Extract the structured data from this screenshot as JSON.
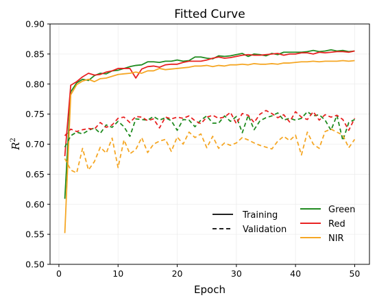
{
  "chart_data": {
    "type": "line",
    "title": "Fitted Curve",
    "xlabel": "Epoch",
    "ylabel": "R",
    "ylabel_superscript": "2",
    "xlim": [
      -1.5,
      52.5
    ],
    "ylim": [
      0.5,
      0.9
    ],
    "xticks": [
      0,
      10,
      20,
      30,
      40,
      50
    ],
    "yticks": [
      0.5,
      0.55,
      0.6,
      0.65,
      0.7,
      0.75,
      0.8,
      0.85,
      0.9
    ],
    "grid": true,
    "legend_styles": [
      {
        "label": "Training",
        "dash": "solid"
      },
      {
        "label": "Validation",
        "dash": "dashed"
      }
    ],
    "legend_styles_placement": "lower-center",
    "legend_colors_placement": "lower-right",
    "colors": {
      "Green": "#1e8a1e",
      "Red": "#e82020",
      "NIR": "#f5a623"
    },
    "series": [
      {
        "name": "Green",
        "style": "Training",
        "values": [
          0.609,
          0.787,
          0.802,
          0.808,
          0.806,
          0.814,
          0.818,
          0.817,
          0.822,
          0.823,
          0.826,
          0.829,
          0.831,
          0.832,
          0.837,
          0.837,
          0.836,
          0.838,
          0.838,
          0.84,
          0.838,
          0.839,
          0.845,
          0.845,
          0.843,
          0.842,
          0.847,
          0.846,
          0.847,
          0.849,
          0.851,
          0.846,
          0.85,
          0.849,
          0.847,
          0.851,
          0.849,
          0.853,
          0.853,
          0.853,
          0.853,
          0.854,
          0.856,
          0.854,
          0.855,
          0.857,
          0.855,
          0.856,
          0.854,
          0.855
        ]
      },
      {
        "name": "Red",
        "style": "Training",
        "values": [
          0.68,
          0.798,
          0.804,
          0.812,
          0.818,
          0.815,
          0.816,
          0.82,
          0.822,
          0.826,
          0.826,
          0.826,
          0.81,
          0.825,
          0.829,
          0.83,
          0.828,
          0.832,
          0.833,
          0.833,
          0.836,
          0.838,
          0.838,
          0.838,
          0.84,
          0.843,
          0.845,
          0.843,
          0.844,
          0.846,
          0.848,
          0.849,
          0.848,
          0.848,
          0.849,
          0.85,
          0.851,
          0.848,
          0.85,
          0.85,
          0.852,
          0.852,
          0.85,
          0.853,
          0.852,
          0.853,
          0.854,
          0.854,
          0.853,
          0.855
        ]
      },
      {
        "name": "NIR",
        "style": "Training",
        "values": [
          0.552,
          0.782,
          0.799,
          0.805,
          0.808,
          0.804,
          0.809,
          0.81,
          0.813,
          0.816,
          0.817,
          0.818,
          0.82,
          0.818,
          0.822,
          0.822,
          0.826,
          0.824,
          0.825,
          0.826,
          0.827,
          0.828,
          0.83,
          0.83,
          0.831,
          0.829,
          0.831,
          0.83,
          0.832,
          0.832,
          0.833,
          0.832,
          0.834,
          0.833,
          0.833,
          0.834,
          0.833,
          0.835,
          0.835,
          0.836,
          0.837,
          0.837,
          0.838,
          0.837,
          0.838,
          0.838,
          0.838,
          0.839,
          0.838,
          0.839
        ]
      },
      {
        "name": "Green",
        "style": "Validation",
        "values": [
          0.695,
          0.714,
          0.72,
          0.717,
          0.723,
          0.727,
          0.718,
          0.732,
          0.728,
          0.738,
          0.729,
          0.713,
          0.742,
          0.741,
          0.74,
          0.746,
          0.74,
          0.744,
          0.739,
          0.723,
          0.741,
          0.74,
          0.729,
          0.74,
          0.747,
          0.735,
          0.735,
          0.747,
          0.738,
          0.746,
          0.719,
          0.748,
          0.724,
          0.739,
          0.744,
          0.747,
          0.752,
          0.74,
          0.743,
          0.74,
          0.743,
          0.754,
          0.747,
          0.749,
          0.74,
          0.723,
          0.748,
          0.706,
          0.736,
          0.741
        ]
      },
      {
        "name": "Red",
        "style": "Validation",
        "values": [
          0.714,
          0.725,
          0.721,
          0.724,
          0.726,
          0.725,
          0.736,
          0.728,
          0.732,
          0.743,
          0.745,
          0.736,
          0.746,
          0.745,
          0.739,
          0.742,
          0.727,
          0.745,
          0.742,
          0.745,
          0.743,
          0.747,
          0.739,
          0.734,
          0.745,
          0.748,
          0.743,
          0.745,
          0.753,
          0.734,
          0.751,
          0.748,
          0.736,
          0.75,
          0.756,
          0.751,
          0.744,
          0.749,
          0.737,
          0.754,
          0.745,
          0.741,
          0.754,
          0.74,
          0.749,
          0.745,
          0.748,
          0.741,
          0.723,
          0.743
        ]
      },
      {
        "name": "NIR",
        "style": "Validation",
        "values": [
          0.676,
          0.657,
          0.652,
          0.693,
          0.657,
          0.671,
          0.695,
          0.685,
          0.71,
          0.661,
          0.707,
          0.684,
          0.691,
          0.711,
          0.686,
          0.7,
          0.705,
          0.708,
          0.688,
          0.712,
          0.7,
          0.72,
          0.711,
          0.717,
          0.694,
          0.713,
          0.693,
          0.702,
          0.698,
          0.702,
          0.711,
          0.707,
          0.702,
          0.698,
          0.695,
          0.692,
          0.705,
          0.713,
          0.706,
          0.715,
          0.682,
          0.72,
          0.7,
          0.693,
          0.721,
          0.725,
          0.72,
          0.715,
          0.694,
          0.708
        ]
      }
    ]
  }
}
